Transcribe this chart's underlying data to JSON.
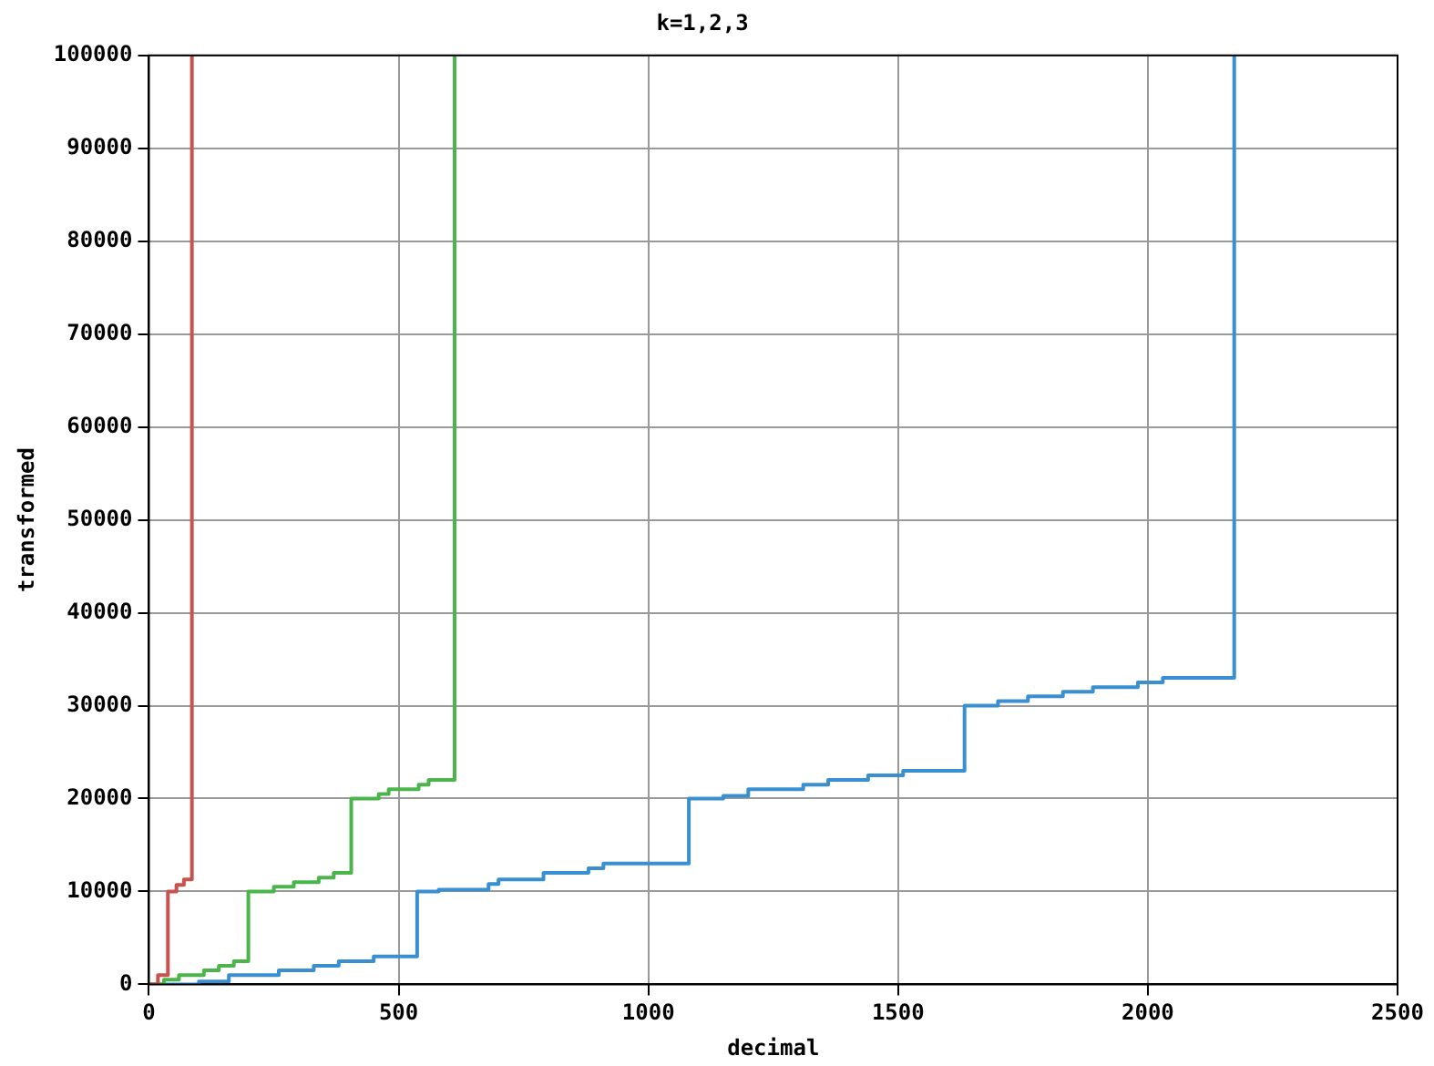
{
  "chart_data": {
    "type": "step",
    "title": "k=1,2,3",
    "xlabel": "decimal",
    "ylabel": "transformed",
    "xlim": [
      0,
      2500
    ],
    "xticks": [
      0,
      500,
      1000,
      1500,
      2000,
      2500
    ],
    "ylim": [
      0,
      100000
    ],
    "yticks": [
      0,
      10000,
      20000,
      30000,
      40000,
      50000,
      60000,
      70000,
      80000,
      90000,
      100000
    ],
    "grid": true,
    "legend": false,
    "marker": "none",
    "line_style": "solid",
    "series": [
      {
        "color": "#c8524e",
        "x": [
          0,
          18,
          38,
          55,
          70,
          86,
          86
        ],
        "values": [
          0,
          1000,
          10000,
          10700,
          11300,
          11500,
          100000
        ]
      },
      {
        "color": "#4bb54b",
        "x": [
          0,
          30,
          60,
          110,
          140,
          170,
          199,
          250,
          290,
          340,
          370,
          405,
          460,
          480,
          540,
          560,
          612
        ],
        "values": [
          0,
          500,
          1000,
          1500,
          2000,
          2500,
          10000,
          10500,
          11000,
          11500,
          12000,
          20000,
          20500,
          21000,
          21500,
          22000,
          100000
        ]
      },
      {
        "color": "#3a8fd0",
        "x": [
          0,
          100,
          160,
          260,
          330,
          380,
          450,
          537,
          580,
          680,
          700,
          790,
          880,
          910,
          1081,
          1150,
          1200,
          1310,
          1360,
          1440,
          1510,
          1633,
          1700,
          1760,
          1830,
          1890,
          1980,
          2030,
          2173
        ],
        "values": [
          0,
          300,
          1000,
          1500,
          2000,
          2500,
          3000,
          10000,
          10200,
          10800,
          11300,
          12000,
          12500,
          13000,
          20000,
          20300,
          21000,
          21500,
          22000,
          22500,
          23000,
          30000,
          30500,
          31000,
          31500,
          32000,
          32500,
          33000,
          100000
        ]
      }
    ]
  }
}
